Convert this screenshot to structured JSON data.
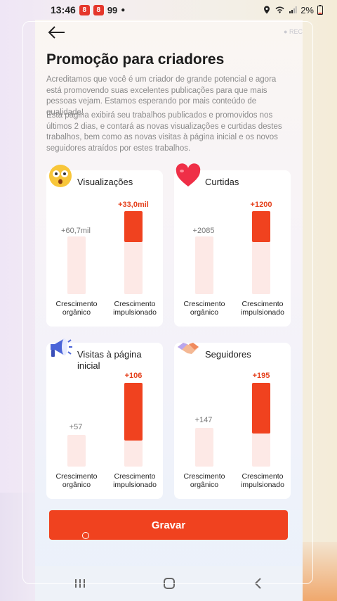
{
  "status": {
    "time": "13:46",
    "badge1": "8",
    "badge2": "8",
    "extra": "99",
    "battery": "2%"
  },
  "header": {
    "rec_label": "● REC"
  },
  "page": {
    "title": "Promoção para criadores",
    "desc1": "Acreditamos que você é um criador de grande potencial e agora está promovendo suas excelentes publicações para que mais pessoas vejam. Estamos esperando por mais conteúdo de qualidade!",
    "desc2": "Esta página exibirá seu trabalhos publicados e promovidos nos últimos 2 dias, e contará as novas visualizações e curtidas destes trabalhos, bem como as novas visitas à página inicial e os novos seguidores atraídos por estes trabalhos."
  },
  "labels": {
    "organic": "Crescimento orgânico",
    "boosted": "Crescimento impulsionado"
  },
  "cards": [
    {
      "title": "Visualizações",
      "icon": "shocked-face-icon",
      "organic": "+60,7mil",
      "boosted": "+33,0mil",
      "organic_level": 0.5,
      "boost_level": 0.45
    },
    {
      "title": "Curtidas",
      "icon": "heart-icon",
      "organic": "+2085",
      "boosted": "+1200",
      "organic_level": 0.5,
      "boost_level": 0.45
    },
    {
      "title": "Visitas à página inicial",
      "icon": "megaphone-icon",
      "organic": "+57",
      "boosted": "+106",
      "organic_level": 0.35,
      "boost_level": 0.68
    },
    {
      "title": "Seguidores",
      "icon": "handshake-icon",
      "organic": "+147",
      "boosted": "+195",
      "organic_level": 0.43,
      "boost_level": 0.57
    }
  ],
  "actions": {
    "record": "Gravar"
  }
}
